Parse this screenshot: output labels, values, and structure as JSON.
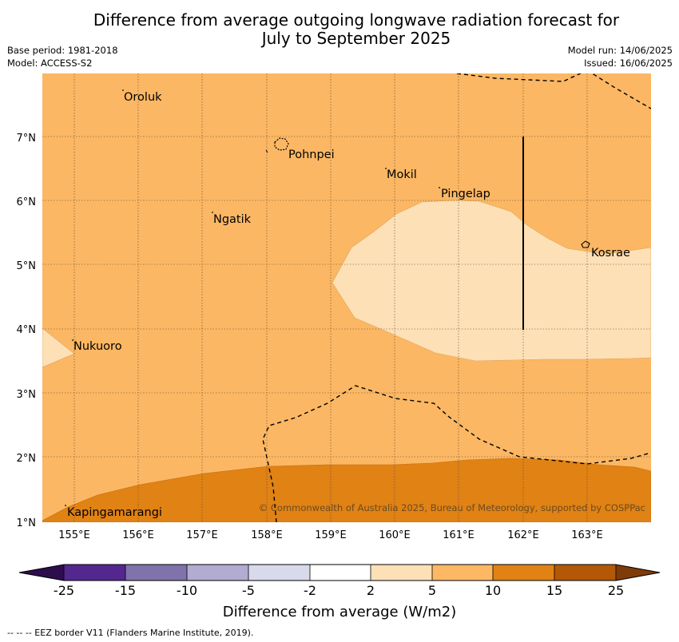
{
  "title_line1": "Difference from average outgoing longwave radiation forecast for",
  "title_line2": "July to September 2025",
  "meta_left": {
    "base_period": "Base period: 1981-2018",
    "model": "Model: ACCESS-S2"
  },
  "meta_right": {
    "model_run": "Model run: 14/06/2025",
    "issued": "Issued: 16/06/2025"
  },
  "map": {
    "x_ticks": [
      "155°E",
      "156°E",
      "157°E",
      "158°E",
      "159°E",
      "160°E",
      "161°E",
      "162°E",
      "163°E"
    ],
    "y_ticks": [
      "1°N",
      "2°N",
      "3°N",
      "4°N",
      "5°N",
      "6°N",
      "7°N"
    ],
    "places": [
      "Oroluk",
      "Pohnpei",
      "Mokil",
      "Pingelap",
      "Ngatik",
      "Kosrae",
      "Nukuoro",
      "Kapingamarangi"
    ],
    "copyright": "© Commonwealth of Australia 2025, Bureau of Meteorology, supported by COSPPac"
  },
  "colorbar": {
    "labels": [
      "-25",
      "-15",
      "-10",
      "-5",
      "-2",
      "2",
      "5",
      "10",
      "15",
      "25"
    ],
    "colors": [
      "#2d0d4e",
      "#54278f",
      "#8073ac",
      "#b2abd2",
      "#d8daeb",
      "#ffffff",
      "#fee0b6",
      "#fdb863",
      "#e08214",
      "#b35806",
      "#7f3b08"
    ],
    "title": "Difference from average (W/m2)"
  },
  "footer": "-- -- -- EEZ border V11 (Flanders Marine Institute, 2019)."
}
